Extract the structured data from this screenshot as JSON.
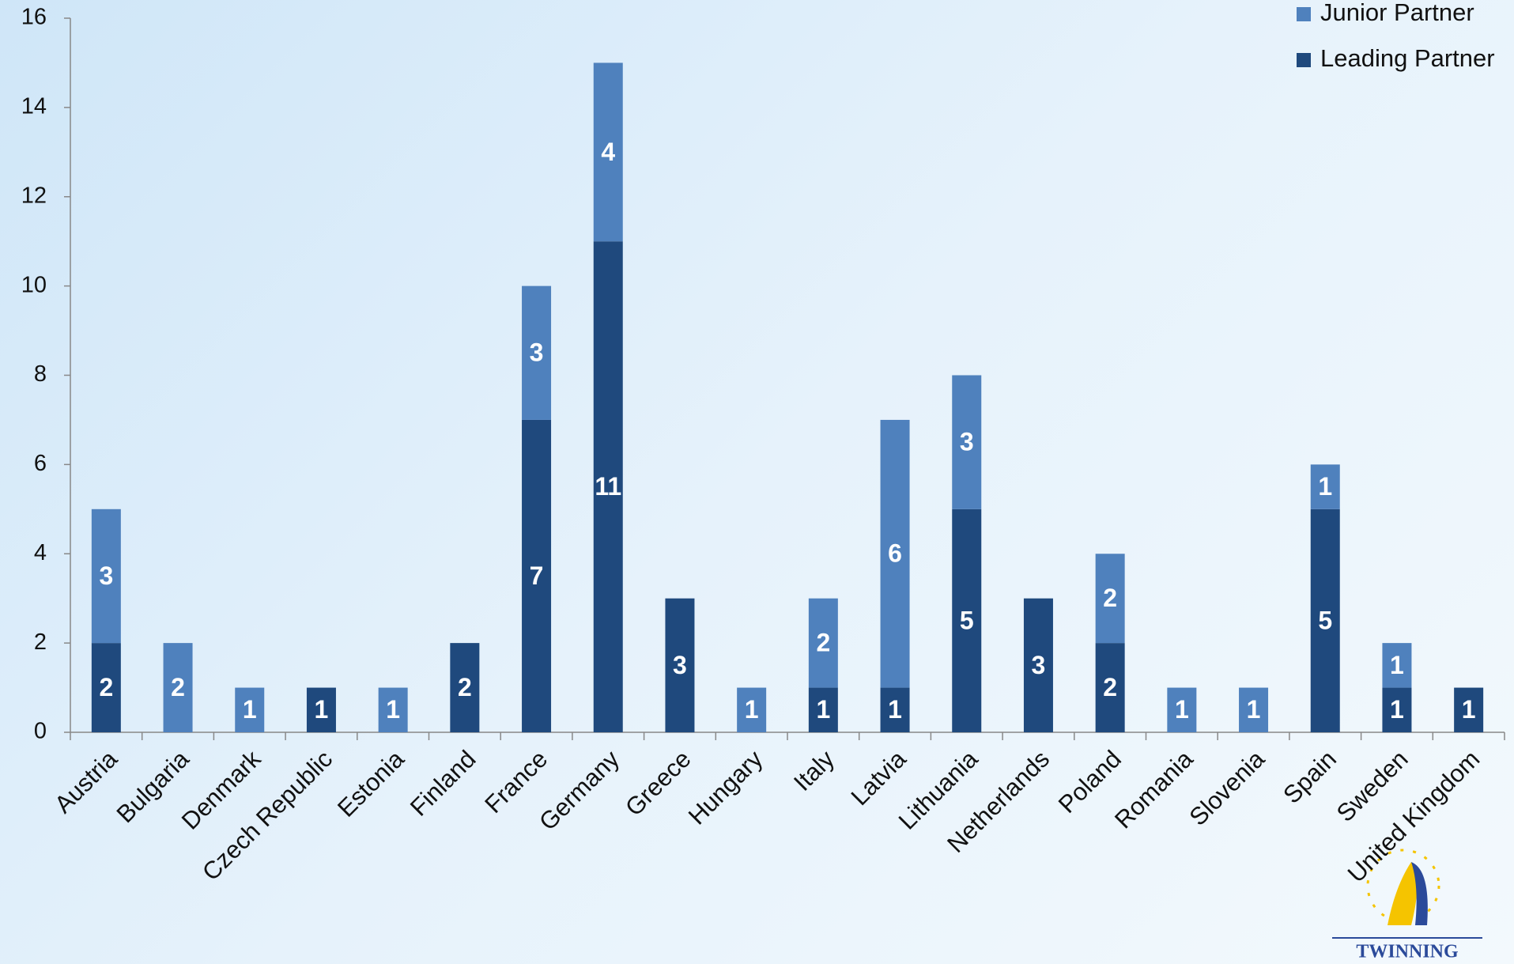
{
  "chart_data": {
    "type": "stacked-bar",
    "categories": [
      "Austria",
      "Bulgaria",
      "Denmark",
      "Czech Republic",
      "Estonia",
      "Finland",
      "France",
      "Germany",
      "Greece",
      "Hungary",
      "Italy",
      "Latvia",
      "Lithuania",
      "Netherlands",
      "Poland",
      "Romania",
      "Slovenia",
      "Spain",
      "Sweden",
      "United Kingdom"
    ],
    "series": [
      {
        "name": "Leading Partner",
        "color": "#1f497d",
        "values": [
          2,
          0,
          0,
          1,
          0,
          2,
          7,
          11,
          3,
          0,
          1,
          1,
          5,
          3,
          2,
          0,
          0,
          5,
          1,
          1
        ]
      },
      {
        "name": "Junior Partner",
        "color": "#4f81bd",
        "values": [
          3,
          2,
          1,
          0,
          1,
          0,
          3,
          4,
          0,
          1,
          2,
          6,
          3,
          0,
          2,
          1,
          1,
          1,
          1,
          0
        ]
      }
    ],
    "ylim": [
      0,
      16
    ],
    "yticks": [
      0,
      2,
      4,
      6,
      8,
      10,
      12,
      14,
      16
    ],
    "legend_position": "top-right",
    "logo": "TWINNING"
  }
}
